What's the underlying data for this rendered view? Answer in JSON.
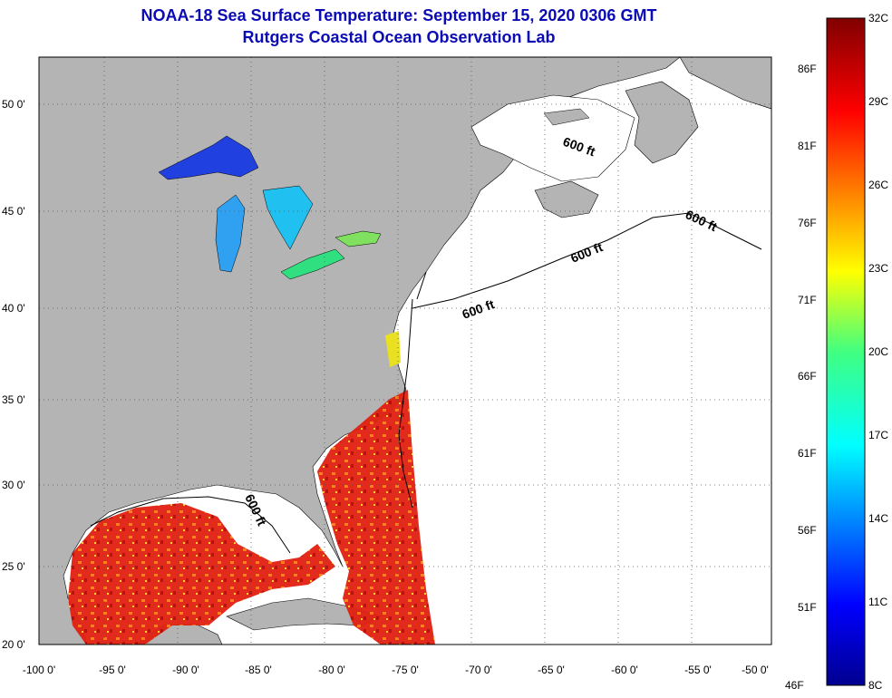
{
  "title": {
    "line1": "NOAA-18 Sea Surface Temperature:  September 15, 2020 0306 GMT",
    "line2": "Rutgers Coastal Ocean Observation Lab"
  },
  "map": {
    "lon_ticks": [
      "-100 0'",
      "-95 0'",
      "-90 0'",
      "-85 0'",
      "-80 0'",
      "-75 0'",
      "-70 0'",
      "-65 0'",
      "-60 0'",
      "-55 0'",
      "-50 0'"
    ],
    "lat_ticks": [
      "50 0'",
      "45 0'",
      "40 0'",
      "35 0'",
      "30 0'",
      "25 0'",
      "20 0'"
    ],
    "depth_labels": [
      "600 ft",
      "600 ft",
      "600 ft",
      "600 ft",
      "600 ft"
    ],
    "colors": {
      "land": "#b4b4b4",
      "ocean_nodata": "#ffffff",
      "grid": "#555555"
    }
  },
  "colorbar": {
    "celsius": [
      "32C",
      "29C",
      "26C",
      "23C",
      "20C",
      "17C",
      "14C",
      "11C",
      "8C"
    ],
    "fahrenheit": [
      "86F",
      "81F",
      "76F",
      "71F",
      "66F",
      "61F",
      "56F",
      "51F",
      "46F"
    ]
  }
}
